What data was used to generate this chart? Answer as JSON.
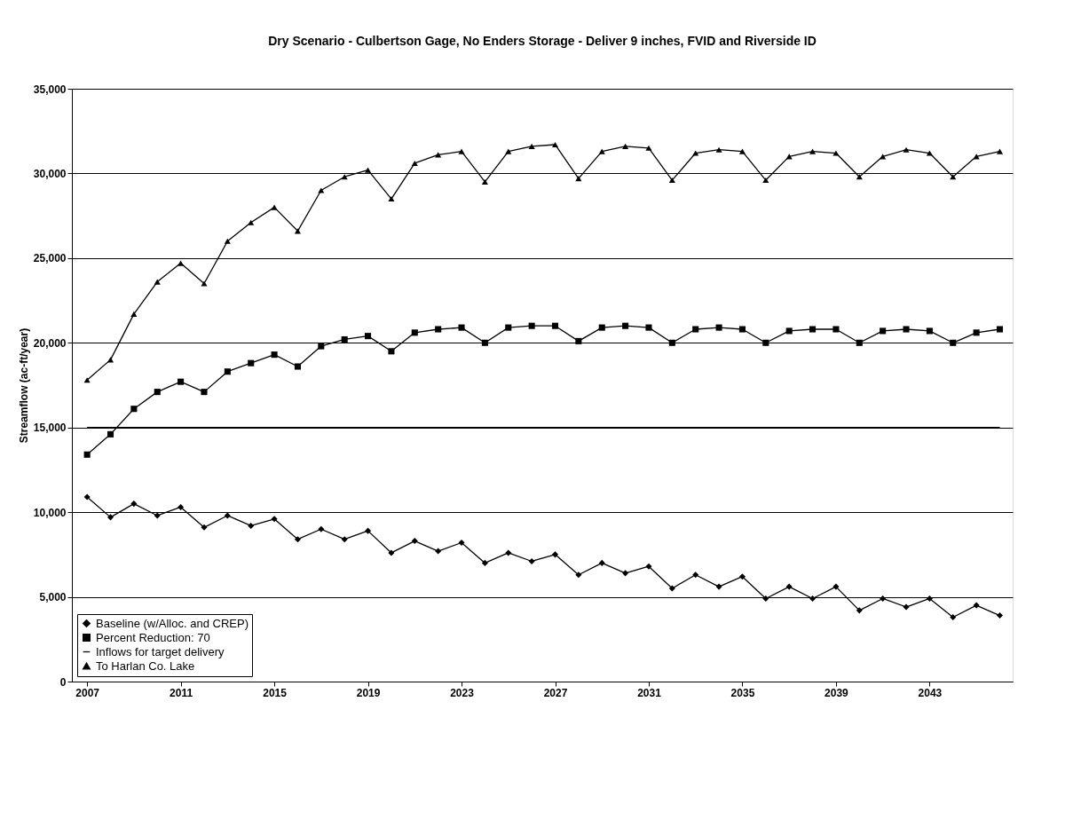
{
  "chart_data": {
    "type": "line",
    "title": "Dry Scenario - Culbertson Gage, No Enders Storage - Deliver 9 inches, FVID and Riverside ID",
    "ylabel": "Streamflow (ac-ft/year)",
    "x": [
      2007,
      2008,
      2009,
      2010,
      2011,
      2012,
      2013,
      2014,
      2015,
      2016,
      2017,
      2018,
      2019,
      2020,
      2021,
      2022,
      2023,
      2024,
      2025,
      2026,
      2027,
      2028,
      2029,
      2030,
      2031,
      2032,
      2033,
      2034,
      2035,
      2036,
      2037,
      2038,
      2039,
      2040,
      2041,
      2042,
      2043,
      2044,
      2045,
      2046
    ],
    "xlim": [
      2006.35,
      2046.55
    ],
    "xticks": [
      2007,
      2011,
      2015,
      2019,
      2023,
      2027,
      2031,
      2035,
      2039,
      2043
    ],
    "ylim": [
      0,
      35000
    ],
    "yticks": [
      0,
      {
        "value": 5000,
        "label": "5,000"
      },
      {
        "value": 10000,
        "label": "10,000"
      },
      {
        "value": 15000,
        "label": "15,000"
      },
      {
        "value": 20000,
        "label": "20,000"
      },
      {
        "value": 25000,
        "label": "25,000"
      },
      {
        "value": 30000,
        "label": "30,000"
      },
      {
        "value": 35000,
        "label": "35,000"
      }
    ],
    "grid": "y",
    "legend": "bottom left",
    "line_style": "solid",
    "series": [
      {
        "name": "Baseline (w/Alloc. and CREP)",
        "color": "#000000",
        "marker": "diamond",
        "values": [
          10900,
          9700,
          10500,
          9800,
          10300,
          9100,
          9800,
          9200,
          9600,
          8400,
          9000,
          8400,
          8900,
          7600,
          8300,
          7700,
          8200,
          7000,
          7600,
          7100,
          7500,
          6300,
          7000,
          6400,
          6800,
          5500,
          6300,
          5600,
          6200,
          4900,
          5600,
          4900,
          5600,
          4200,
          4900,
          4400,
          4900,
          3800,
          4500,
          3900
        ]
      },
      {
        "name": "Percent Reduction: 70",
        "color": "#000000",
        "marker": "square",
        "values": [
          13400,
          14600,
          16100,
          17100,
          17700,
          17100,
          18300,
          18800,
          19300,
          18600,
          19800,
          20200,
          20400,
          19500,
          20600,
          20800,
          20900,
          20000,
          20900,
          21000,
          21000,
          20100,
          20900,
          21000,
          20900,
          20000,
          20800,
          20900,
          20800,
          20000,
          20700,
          20800,
          20800,
          20000,
          20700,
          20800,
          20700,
          20000,
          20600,
          20800
        ]
      },
      {
        "name": "Inflows for target delivery",
        "color": "#000000",
        "marker": "none",
        "values": [
          15000,
          15000,
          15000,
          15000,
          15000,
          15000,
          15000,
          15000,
          15000,
          15000,
          15000,
          15000,
          15000,
          15000,
          15000,
          15000,
          15000,
          15000,
          15000,
          15000,
          15000,
          15000,
          15000,
          15000,
          15000,
          15000,
          15000,
          15000,
          15000,
          15000,
          15000,
          15000,
          15000,
          15000,
          15000,
          15000,
          15000,
          15000,
          15000,
          15000
        ]
      },
      {
        "name": "To Harlan Co. Lake",
        "color": "#000000",
        "marker": "triangle",
        "values": [
          17800,
          19000,
          21700,
          23600,
          24700,
          23500,
          26000,
          27100,
          28000,
          26600,
          29000,
          29800,
          30200,
          28500,
          30600,
          31100,
          31300,
          29500,
          31300,
          31600,
          31700,
          29700,
          31300,
          31600,
          31500,
          29600,
          31200,
          31400,
          31300,
          29600,
          31000,
          31300,
          31200,
          29800,
          31000,
          31400,
          31200,
          29800,
          31000,
          31300
        ]
      }
    ]
  }
}
